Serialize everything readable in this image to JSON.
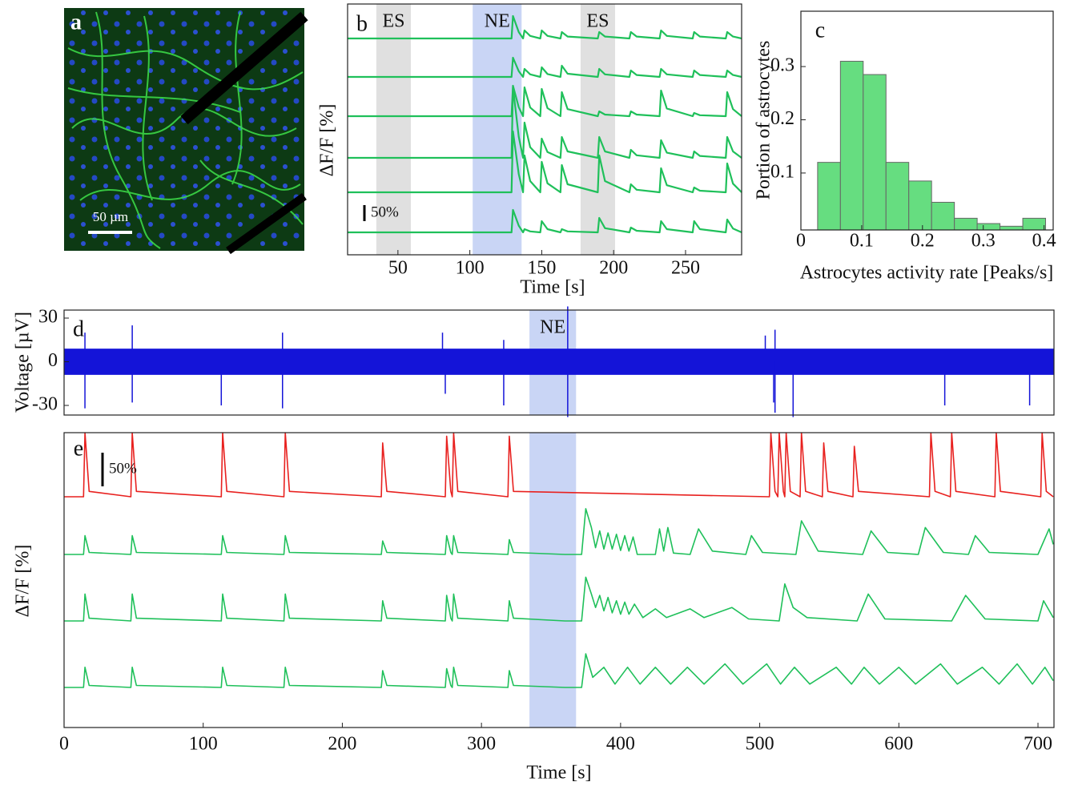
{
  "image_panel": {
    "label": "a",
    "scale_bar": "50 µm"
  },
  "chart_data": [
    {
      "type": "line",
      "label": "b",
      "x_label": "Time [s]",
      "y_label": "ΔF/F  [%]",
      "xlim": [
        15,
        289
      ],
      "xticks": [
        50,
        100,
        150,
        200,
        250
      ],
      "scale_bar": {
        "value": 50,
        "label": "50%"
      },
      "regions": [
        {
          "label": "ES",
          "start": 35,
          "end": 59,
          "color": "#e0e0e0"
        },
        {
          "label": "NE",
          "start": 102,
          "end": 136,
          "color": "#c9d5f5"
        },
        {
          "label": "ES",
          "start": 177,
          "end": 201,
          "color": "#e0e0e0"
        }
      ],
      "x": [
        15,
        129,
        130,
        134,
        137,
        138,
        142,
        149,
        150,
        154,
        163,
        164,
        168,
        189,
        190,
        194,
        211,
        212,
        216,
        232,
        233,
        237,
        255,
        256,
        260,
        278,
        279,
        283,
        289
      ],
      "series": [
        {
          "color": "#1fc05a",
          "values": [
            0,
            0,
            70,
            20,
            0,
            25,
            8,
            0,
            25,
            8,
            0,
            20,
            6,
            0,
            20,
            6,
            0,
            20,
            6,
            0,
            25,
            8,
            0,
            20,
            6,
            0,
            20,
            6,
            0
          ]
        },
        {
          "color": "#1fc05a",
          "values": [
            0,
            0,
            60,
            18,
            0,
            25,
            8,
            0,
            30,
            9,
            0,
            35,
            10,
            0,
            25,
            8,
            0,
            20,
            6,
            0,
            25,
            8,
            0,
            20,
            6,
            0,
            20,
            6,
            0
          ]
        },
        {
          "color": "#1fc05a",
          "values": [
            0,
            0,
            95,
            28,
            0,
            90,
            27,
            0,
            85,
            25,
            0,
            75,
            22,
            0,
            15,
            5,
            0,
            15,
            5,
            0,
            80,
            24,
            0,
            10,
            3,
            0,
            75,
            22,
            0
          ]
        },
        {
          "color": "#1fc05a",
          "values": [
            0,
            0,
            220,
            66,
            0,
            110,
            33,
            0,
            60,
            18,
            0,
            65,
            20,
            0,
            65,
            20,
            0,
            25,
            8,
            0,
            55,
            16,
            0,
            20,
            6,
            0,
            65,
            20,
            0
          ]
        },
        {
          "color": "#1fc05a",
          "values": [
            0,
            0,
            190,
            57,
            0,
            115,
            35,
            0,
            95,
            28,
            0,
            85,
            25,
            0,
            115,
            35,
            0,
            25,
            8,
            0,
            75,
            22,
            0,
            15,
            5,
            0,
            90,
            27,
            0
          ]
        },
        {
          "color": "#1fc05a",
          "values": [
            0,
            0,
            70,
            21,
            0,
            10,
            3,
            0,
            35,
            10,
            0,
            10,
            3,
            0,
            45,
            13,
            0,
            15,
            5,
            0,
            35,
            10,
            0,
            35,
            10,
            0,
            40,
            12,
            0
          ]
        }
      ]
    },
    {
      "type": "histogram",
      "label": "c",
      "x_label": "Astrocytes activity rate [Peaks/s]",
      "y_label": "Portion of astrocytes",
      "color": "#66dd80",
      "bins": [
        0.0275,
        0.065,
        0.1025,
        0.14,
        0.1775,
        0.215,
        0.2525,
        0.29,
        0.3275,
        0.365,
        0.4025
      ],
      "values": [
        0.12,
        0.31,
        0.285,
        0.12,
        0.085,
        0.045,
        0.015,
        0.005,
        0,
        0.015
      ],
      "xlim": [
        0,
        0.415
      ],
      "xticks": [
        0,
        0.1,
        0.2,
        0.3,
        0.4
      ],
      "ylim": [
        -0.007,
        0.404
      ],
      "yticks": [
        0.1,
        0.2,
        0.3
      ]
    },
    {
      "type": "line",
      "label": "d",
      "y_label": "Voltage [µV]",
      "color": "#1414d8",
      "xlim": [
        0,
        711.5
      ],
      "ylim": [
        -36.6,
        35.5
      ],
      "yticks": [
        -30,
        0,
        30
      ],
      "regions": [
        {
          "label": "NE",
          "start": 334.5,
          "end": 368,
          "color": "#c9d5f5"
        }
      ],
      "noise_range": [
        -9,
        9
      ],
      "spikes": {
        "x": [
          15,
          15,
          49,
          49,
          113,
          157,
          157,
          272,
          274,
          316,
          316,
          362,
          362,
          504,
          510,
          511,
          511,
          524,
          633,
          694
        ],
        "values": [
          20,
          -32,
          25,
          -28,
          -30,
          20,
          -32,
          20,
          -22,
          15,
          -30,
          38,
          -38,
          18,
          -28,
          22,
          -35,
          -38,
          -30,
          -30
        ]
      }
    },
    {
      "type": "line",
      "label": "e",
      "x_label": "Time [s]",
      "y_label": "ΔF/F  [%]",
      "xlim": [
        0,
        711.5
      ],
      "xticks": [
        0,
        100,
        200,
        300,
        400,
        500,
        600,
        700
      ],
      "scale_bar": {
        "value": 50,
        "label": "50%"
      },
      "regions": [
        {
          "start": 334.5,
          "end": 368,
          "color": "#c9d5f5"
        }
      ],
      "series": [
        {
          "color": "#e8211f",
          "x": [
            0,
            14,
            15,
            18,
            48,
            49,
            52,
            113,
            114,
            117,
            158,
            159,
            162,
            228,
            229,
            232,
            274,
            275,
            278,
            279,
            280,
            283,
            319,
            320,
            323,
            507,
            508,
            511,
            513,
            514,
            517,
            518,
            519,
            522,
            529,
            530,
            533,
            545,
            546,
            549,
            567,
            568,
            571,
            622,
            623,
            626,
            637,
            638,
            641,
            669,
            670,
            673,
            702,
            703,
            706,
            711
          ],
          "values": [
            0,
            0,
            95,
            8,
            0,
            95,
            8,
            0,
            95,
            8,
            0,
            95,
            8,
            0,
            80,
            8,
            0,
            90,
            8,
            0,
            95,
            8,
            0,
            90,
            8,
            0,
            95,
            8,
            0,
            95,
            8,
            0,
            95,
            8,
            0,
            95,
            8,
            0,
            80,
            8,
            0,
            75,
            8,
            0,
            95,
            8,
            0,
            95,
            8,
            0,
            95,
            8,
            0,
            95,
            8,
            0
          ]
        },
        {
          "color": "#1fc05a",
          "x": [
            0,
            14,
            15,
            18,
            48,
            49,
            52,
            113,
            114,
            117,
            158,
            159,
            162,
            228,
            229,
            232,
            274,
            275,
            278,
            279,
            280,
            283,
            319,
            320,
            323,
            360,
            372,
            375,
            379,
            382,
            385,
            388,
            391,
            394,
            397,
            400,
            403,
            406,
            409,
            412,
            425,
            428,
            431,
            434,
            438,
            450,
            456,
            466,
            490,
            494,
            502,
            526,
            530,
            542,
            574,
            580,
            592,
            614,
            619,
            632,
            650,
            655,
            665,
            700,
            708,
            711
          ],
          "values": [
            0,
            0,
            28,
            3,
            0,
            28,
            3,
            0,
            28,
            3,
            0,
            28,
            3,
            0,
            20,
            3,
            0,
            28,
            3,
            0,
            28,
            3,
            0,
            22,
            3,
            0,
            0,
            68,
            40,
            10,
            35,
            8,
            32,
            8,
            30,
            6,
            28,
            5,
            26,
            0,
            0,
            38,
            5,
            40,
            2,
            0,
            38,
            5,
            0,
            28,
            3,
            0,
            50,
            5,
            0,
            35,
            3,
            0,
            40,
            3,
            0,
            28,
            3,
            0,
            38,
            15
          ]
        },
        {
          "color": "#1fc05a",
          "x": [
            0,
            14,
            15,
            18,
            48,
            49,
            52,
            113,
            114,
            117,
            158,
            159,
            162,
            228,
            229,
            232,
            274,
            275,
            278,
            279,
            280,
            283,
            319,
            320,
            323,
            360,
            372,
            375,
            379,
            382,
            385,
            388,
            391,
            394,
            397,
            400,
            403,
            406,
            410,
            416,
            425,
            433,
            450,
            460,
            480,
            492,
            514,
            518,
            524,
            534,
            570,
            578,
            590,
            638,
            648,
            662,
            700,
            704,
            711
          ],
          "values": [
            0,
            0,
            40,
            4,
            0,
            40,
            4,
            0,
            40,
            4,
            0,
            40,
            4,
            0,
            30,
            4,
            0,
            38,
            4,
            0,
            40,
            4,
            0,
            30,
            4,
            0,
            0,
            65,
            40,
            20,
            38,
            15,
            35,
            12,
            30,
            10,
            28,
            10,
            25,
            5,
            18,
            5,
            18,
            5,
            20,
            3,
            0,
            55,
            20,
            5,
            0,
            40,
            3,
            0,
            38,
            3,
            0,
            30,
            5
          ]
        },
        {
          "color": "#1fc05a",
          "x": [
            0,
            14,
            15,
            18,
            48,
            49,
            52,
            113,
            114,
            117,
            158,
            159,
            162,
            228,
            229,
            232,
            274,
            275,
            278,
            279,
            280,
            283,
            319,
            320,
            323,
            360,
            372,
            375,
            380,
            388,
            396,
            405,
            414,
            425,
            436,
            448,
            460,
            475,
            488,
            505,
            515,
            525,
            536,
            555,
            566,
            575,
            586,
            600,
            612,
            630,
            642,
            660,
            672,
            685,
            696,
            705,
            711
          ],
          "values": [
            0,
            0,
            30,
            3,
            0,
            30,
            3,
            0,
            30,
            3,
            0,
            30,
            3,
            0,
            25,
            3,
            0,
            28,
            3,
            0,
            30,
            3,
            0,
            25,
            3,
            0,
            0,
            50,
            15,
            30,
            5,
            30,
            5,
            30,
            5,
            30,
            5,
            35,
            5,
            35,
            5,
            30,
            5,
            30,
            5,
            30,
            5,
            30,
            5,
            35,
            5,
            30,
            5,
            35,
            5,
            30,
            10
          ]
        }
      ]
    }
  ]
}
